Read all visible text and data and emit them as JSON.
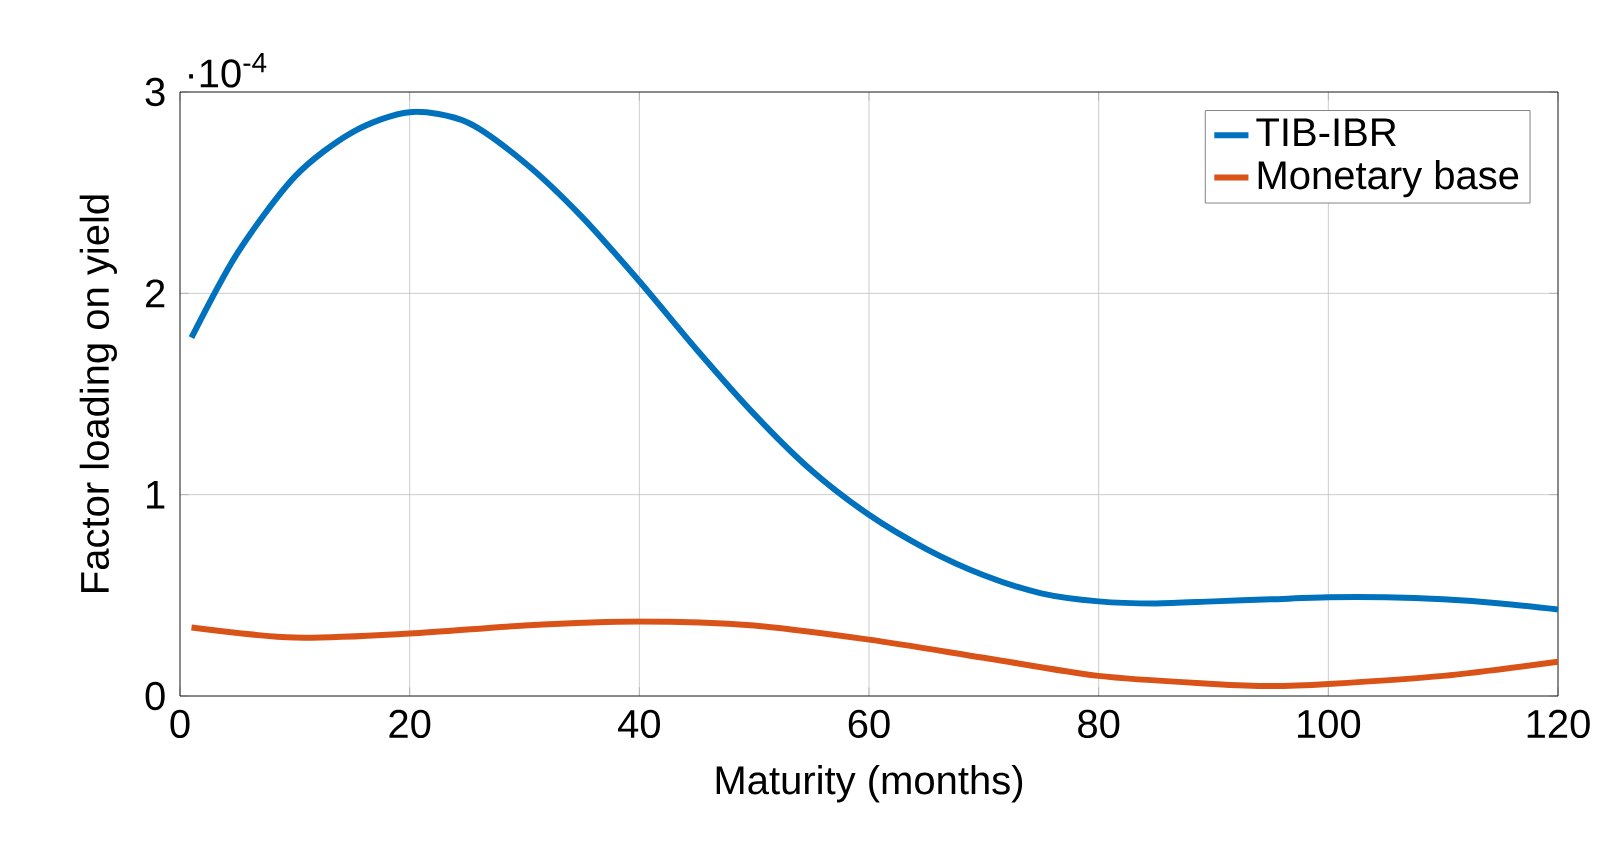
{
  "chart_data": {
    "type": "line",
    "xlabel": "Maturity (months)",
    "ylabel": "Factor loading on yield",
    "annotations": [
      "·10$^{-4}$"
    ],
    "xlim": [
      0,
      120
    ],
    "ylim": [
      0,
      3
    ],
    "xticks": [
      0,
      20,
      40,
      60,
      80,
      100,
      120
    ],
    "yticks": [
      0,
      1,
      2,
      3
    ],
    "grid": true,
    "legend": "top right",
    "marker": "none",
    "line_style": "solid",
    "series": [
      {
        "name": "TIB-IBR",
        "color": "#0072bd",
        "x": [
          1,
          5,
          10,
          15,
          20,
          25,
          30,
          35,
          40,
          45,
          50,
          55,
          60,
          65,
          70,
          75,
          80,
          85,
          90,
          95,
          100,
          105,
          110,
          115,
          120
        ],
        "values": [
          1.78,
          2.2,
          2.58,
          2.8,
          2.9,
          2.85,
          2.65,
          2.38,
          2.06,
          1.72,
          1.4,
          1.12,
          0.9,
          0.73,
          0.6,
          0.51,
          0.47,
          0.46,
          0.47,
          0.48,
          0.49,
          0.49,
          0.48,
          0.46,
          0.43
        ]
      },
      {
        "name": "Monetary base",
        "color": "#d95319",
        "x": [
          1,
          10,
          20,
          30,
          40,
          50,
          60,
          70,
          80,
          90,
          95,
          100,
          110,
          120
        ],
        "values": [
          0.34,
          0.29,
          0.31,
          0.35,
          0.37,
          0.35,
          0.28,
          0.19,
          0.1,
          0.06,
          0.05,
          0.06,
          0.1,
          0.17
        ]
      }
    ]
  }
}
